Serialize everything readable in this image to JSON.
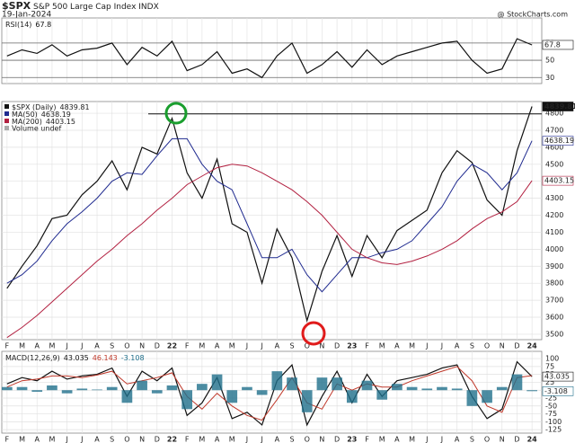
{
  "header": {
    "symbol": "$SPX",
    "name": "S&P 500 Large Cap Index",
    "exchange": "INDX",
    "date": "19-Jan-2024",
    "source": "@ StockCharts.com"
  },
  "chart_data": [
    {
      "type": "line",
      "legend_title": "RSI(14)",
      "ylim": [
        23,
        99
      ],
      "yticks": [
        30,
        50,
        70
      ],
      "grid": true,
      "series": [
        {
          "color": "#111111",
          "right_label": true,
          "values": [
            55,
            62,
            58,
            68,
            55,
            62,
            64,
            70,
            45,
            65,
            55,
            72,
            38,
            45,
            60,
            35,
            40,
            30,
            55,
            70,
            35,
            45,
            60,
            42,
            62,
            45,
            55,
            60,
            65,
            70,
            72,
            50,
            35,
            40,
            75,
            67.8
          ]
        }
      ]
    },
    {
      "type": "line",
      "ylim": [
        3468,
        4869
      ],
      "yticks": [
        3500,
        3600,
        3700,
        3800,
        3900,
        4000,
        4100,
        4200,
        4300,
        4400,
        4500,
        4600,
        4700,
        4800
      ],
      "grid": true,
      "reference_line": 4796,
      "volume_label": "Volume undef",
      "categories": [
        "F",
        "M",
        "A",
        "M",
        "J",
        "J",
        "A",
        "S",
        "O",
        "N",
        "D",
        "22",
        "F",
        "M",
        "A",
        "M",
        "J",
        "J",
        "A",
        "S",
        "O",
        "N",
        "D",
        "23",
        "F",
        "M",
        "A",
        "M",
        "J",
        "J",
        "A",
        "S",
        "O",
        "N",
        "D",
        "24"
      ],
      "series": [
        {
          "name": "$SPX (Daily)",
          "color": "#111111",
          "right_label": true,
          "values": [
            3770,
            3900,
            4020,
            4180,
            4200,
            4320,
            4400,
            4520,
            4350,
            4600,
            4560,
            4770,
            4450,
            4300,
            4530,
            4150,
            4100,
            3800,
            4120,
            3950,
            3580,
            3870,
            4080,
            3840,
            4080,
            3950,
            4110,
            4170,
            4230,
            4450,
            4580,
            4510,
            4290,
            4200,
            4580,
            4839.81
          ]
        },
        {
          "name": "MA(50)",
          "color": "#1f2a8f",
          "right_label": true,
          "values": [
            3800,
            3850,
            3930,
            4050,
            4150,
            4220,
            4300,
            4400,
            4450,
            4440,
            4550,
            4650,
            4650,
            4500,
            4400,
            4350,
            4150,
            3950,
            3950,
            4000,
            3850,
            3750,
            3850,
            3950,
            3950,
            3980,
            4000,
            4050,
            4150,
            4250,
            4400,
            4500,
            4450,
            4350,
            4450,
            4638.19
          ]
        },
        {
          "name": "MA(200)",
          "color": "#b22040",
          "right_label": true,
          "values": [
            3480,
            3540,
            3610,
            3690,
            3770,
            3850,
            3930,
            4000,
            4080,
            4150,
            4230,
            4300,
            4380,
            4430,
            4480,
            4500,
            4490,
            4450,
            4400,
            4350,
            4280,
            4200,
            4100,
            4000,
            3950,
            3920,
            3910,
            3930,
            3960,
            4000,
            4050,
            4120,
            4180,
            4220,
            4280,
            4403.15
          ]
        }
      ]
    },
    {
      "type": "line",
      "legend_title": "MACD(12,26,9)",
      "ylim": [
        -136,
        123
      ],
      "yticks": [
        100,
        75,
        50,
        25,
        0,
        -25,
        -50,
        -75,
        -100,
        -125
      ],
      "grid": true,
      "categories": [
        "F",
        "M",
        "A",
        "M",
        "J",
        "J",
        "A",
        "S",
        "O",
        "N",
        "D",
        "22",
        "F",
        "M",
        "A",
        "M",
        "J",
        "J",
        "A",
        "S",
        "O",
        "N",
        "D",
        "23",
        "F",
        "M",
        "A",
        "M",
        "J",
        "J",
        "A",
        "S",
        "O",
        "N",
        "D",
        "24"
      ],
      "series": [
        {
          "color": "#111111",
          "right_label": true,
          "values": [
            20,
            40,
            30,
            60,
            35,
            45,
            50,
            70,
            -20,
            60,
            30,
            70,
            -80,
            -40,
            40,
            -90,
            -70,
            -110,
            30,
            80,
            -110,
            -20,
            60,
            -40,
            50,
            -20,
            30,
            40,
            50,
            70,
            80,
            -20,
            -90,
            -60,
            90,
            43.035
          ]
        },
        {
          "color": "#c0392b",
          "values": [
            10,
            30,
            35,
            45,
            45,
            40,
            48,
            60,
            20,
            30,
            40,
            55,
            -20,
            -60,
            -10,
            -50,
            -80,
            -95,
            -30,
            40,
            -40,
            -60,
            20,
            0,
            20,
            10,
            10,
            30,
            45,
            60,
            75,
            30,
            -50,
            -70,
            40,
            46.143
          ]
        },
        {
          "color": "#1f6f8b",
          "style": "bar",
          "right_label": true,
          "values": [
            10,
            10,
            -5,
            15,
            -10,
            5,
            2,
            10,
            -40,
            30,
            -10,
            15,
            -60,
            20,
            50,
            -40,
            10,
            -15,
            60,
            40,
            -70,
            40,
            40,
            -40,
            30,
            -30,
            20,
            10,
            5,
            10,
            5,
            -50,
            -40,
            10,
            50,
            -3.108
          ]
        }
      ]
    }
  ]
}
